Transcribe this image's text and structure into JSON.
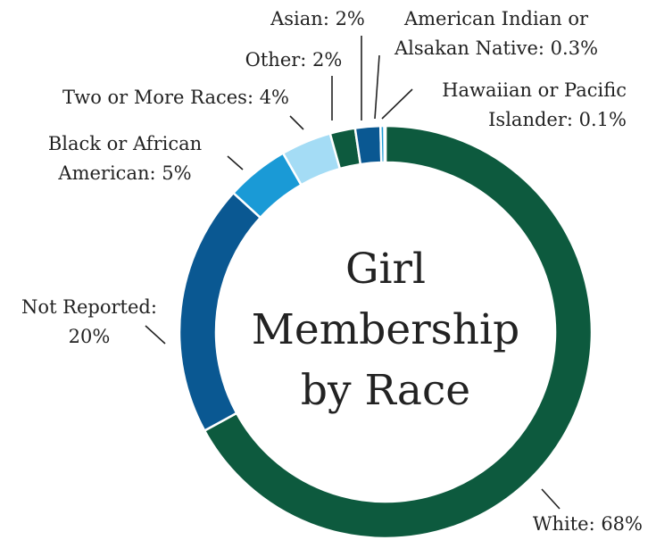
{
  "chart_data": {
    "type": "donut",
    "title": "Girl\nMembership\nby Race",
    "values": [
      68,
      20,
      5,
      4,
      2,
      2,
      0.3,
      0.1
    ],
    "value_labels": [
      "White: 68%",
      "Not Reported:\n20%",
      "Black or African\nAmerican: 5%",
      "Two or More Races: 4%",
      "Other: 2%",
      "Asian: 2%",
      "American Indian or\nAlsakan Native: 0.3%",
      "Hawaiian or Pacific\nIslander: 0.1%"
    ],
    "colors": [
      "#0d5a3e",
      "#0a5892",
      "#1a9ad6",
      "#a4dcf5",
      "#0d5a3e",
      "#0a5892",
      "#1a9ad6",
      "#a4dcf5"
    ]
  }
}
